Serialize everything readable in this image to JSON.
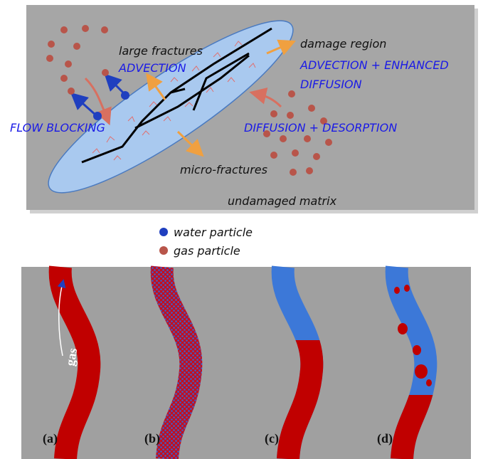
{
  "top_panel": {
    "large_fractures": "large fractures",
    "advection": "ADVECTION",
    "damage_region": "damage region",
    "advection_enhanced": "ADVECTION + ENHANCED",
    "diffusion": "DIFFUSION",
    "flow_blocking": "FLOW BLOCKING",
    "diffusion_desorption": "DIFFUSION + DESORPTION",
    "micro_fractures": "micro-fractures",
    "undamaged_matrix": "undamaged matrix"
  },
  "legend": {
    "items": [
      {
        "label": "water particle"
      },
      {
        "label": "gas particle"
      }
    ]
  },
  "bottom_panel": {
    "flow_label": "gas",
    "panels": [
      "(a)",
      "(b)",
      "(c)",
      "(d)"
    ]
  }
}
